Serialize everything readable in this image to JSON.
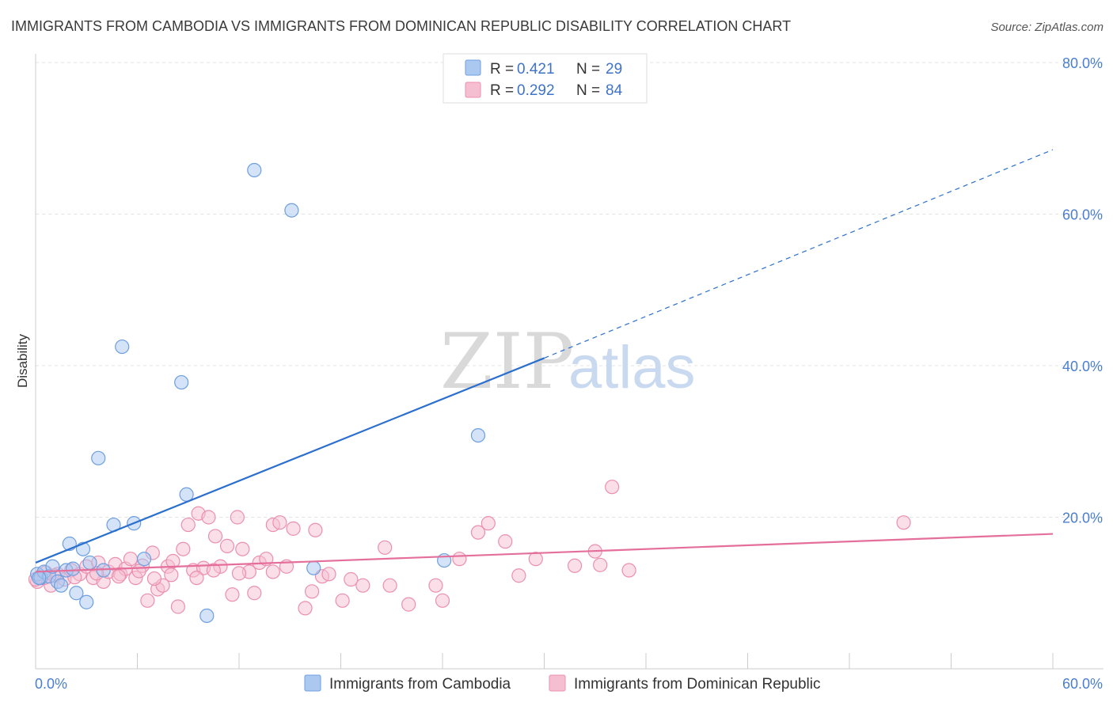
{
  "title": "IMMIGRANTS FROM CAMBODIA VS IMMIGRANTS FROM DOMINICAN REPUBLIC DISABILITY CORRELATION CHART",
  "source": "Source: ZipAtlas.com",
  "watermark": {
    "zip": "ZIP",
    "atlas": "atlas"
  },
  "colors": {
    "blue_fill": "#aac8f0",
    "blue_stroke": "#6d9fe0",
    "blue_line": "#2b6fce",
    "pink_fill": "#f6bfd1",
    "pink_stroke": "#ec8fae",
    "pink_line": "#e46f9b",
    "tick_text": "#4a7fd0",
    "grid": "#e3e3e3"
  },
  "legend": {
    "rows": [
      {
        "r_label": "R =",
        "r_value": "0.421",
        "n_label": "N =",
        "n_value": "29",
        "series": "blue"
      },
      {
        "r_label": "R =",
        "r_value": "0.292",
        "n_label": "N =",
        "n_value": "84",
        "series": "pink"
      }
    ]
  },
  "chart_data": {
    "type": "scatter",
    "title": "IMMIGRANTS FROM CAMBODIA VS IMMIGRANTS FROM DOMINICAN REPUBLIC DISABILITY CORRELATION CHART",
    "xlabel": "",
    "ylabel": "Disability",
    "xlim": [
      0,
      60
    ],
    "ylim": [
      0,
      80
    ],
    "x_tick_labels": [
      "0.0%",
      "60.0%"
    ],
    "y_tick_labels": [
      "20.0%",
      "40.0%",
      "60.0%",
      "80.0%"
    ],
    "y_ticks": [
      20,
      40,
      60,
      80
    ],
    "grid": true,
    "legend_position": "top-center",
    "series": [
      {
        "name": "Immigrants from Cambodia",
        "color": "blue",
        "points": [
          [
            0.1,
            12.5
          ],
          [
            0.3,
            12.0
          ],
          [
            0.5,
            12.8
          ],
          [
            0.8,
            12.2
          ],
          [
            1.0,
            13.5
          ],
          [
            1.3,
            11.5
          ],
          [
            1.5,
            11.0
          ],
          [
            1.8,
            13.0
          ],
          [
            2.0,
            16.5
          ],
          [
            2.2,
            13.2
          ],
          [
            2.4,
            10.0
          ],
          [
            2.8,
            15.8
          ],
          [
            3.0,
            8.8
          ],
          [
            3.2,
            14.0
          ],
          [
            3.7,
            27.8
          ],
          [
            4.0,
            13.0
          ],
          [
            4.6,
            19.0
          ],
          [
            5.1,
            42.5
          ],
          [
            5.8,
            19.2
          ],
          [
            6.4,
            14.5
          ],
          [
            8.6,
            37.8
          ],
          [
            8.9,
            23.0
          ],
          [
            10.1,
            7.0
          ],
          [
            12.9,
            65.8
          ],
          [
            15.1,
            60.5
          ],
          [
            16.4,
            13.3
          ],
          [
            24.1,
            14.3
          ],
          [
            26.1,
            30.8
          ],
          [
            0.2,
            12.0
          ]
        ],
        "trend": {
          "x_start": 0,
          "y_start": 14.0,
          "x_solid_end": 30,
          "y_solid_end": 41.0,
          "x_end": 60,
          "y_end": 68.5
        }
      },
      {
        "name": "Immigrants from Dominican Republic",
        "color": "pink",
        "points": [
          [
            0.1,
            11.5
          ],
          [
            0.3,
            12.2
          ],
          [
            0.6,
            12.7
          ],
          [
            0.9,
            11.0
          ],
          [
            1.3,
            12.5
          ],
          [
            1.7,
            11.8
          ],
          [
            2.1,
            13.0
          ],
          [
            2.6,
            12.5
          ],
          [
            3.0,
            13.5
          ],
          [
            3.4,
            12.0
          ],
          [
            3.7,
            14.0
          ],
          [
            4.0,
            11.5
          ],
          [
            4.3,
            12.8
          ],
          [
            4.7,
            13.8
          ],
          [
            5.0,
            12.5
          ],
          [
            5.3,
            13.2
          ],
          [
            5.6,
            14.5
          ],
          [
            5.9,
            12.0
          ],
          [
            6.3,
            13.6
          ],
          [
            6.6,
            9.0
          ],
          [
            6.9,
            15.3
          ],
          [
            7.2,
            10.5
          ],
          [
            7.5,
            11.0
          ],
          [
            7.8,
            13.5
          ],
          [
            8.1,
            14.2
          ],
          [
            8.4,
            8.2
          ],
          [
            8.7,
            15.8
          ],
          [
            9.0,
            19.0
          ],
          [
            9.3,
            13.0
          ],
          [
            9.6,
            20.5
          ],
          [
            9.9,
            13.3
          ],
          [
            10.2,
            20.0
          ],
          [
            10.6,
            17.5
          ],
          [
            10.9,
            13.5
          ],
          [
            11.3,
            16.2
          ],
          [
            11.6,
            9.8
          ],
          [
            11.9,
            20.0
          ],
          [
            12.2,
            15.8
          ],
          [
            12.6,
            12.8
          ],
          [
            12.9,
            10.0
          ],
          [
            13.2,
            14.0
          ],
          [
            13.6,
            14.5
          ],
          [
            14.0,
            19.0
          ],
          [
            14.4,
            19.3
          ],
          [
            14.8,
            13.5
          ],
          [
            15.2,
            18.5
          ],
          [
            15.9,
            8.0
          ],
          [
            16.3,
            10.2
          ],
          [
            16.5,
            18.3
          ],
          [
            16.9,
            12.2
          ],
          [
            17.3,
            12.5
          ],
          [
            18.1,
            9.0
          ],
          [
            18.6,
            11.8
          ],
          [
            19.3,
            11.0
          ],
          [
            20.6,
            16.0
          ],
          [
            20.9,
            11.0
          ],
          [
            22.0,
            8.5
          ],
          [
            23.6,
            11.0
          ],
          [
            24.0,
            9.0
          ],
          [
            25.0,
            14.5
          ],
          [
            26.1,
            18.0
          ],
          [
            26.7,
            19.2
          ],
          [
            27.7,
            16.8
          ],
          [
            28.5,
            12.3
          ],
          [
            29.5,
            14.5
          ],
          [
            31.8,
            13.6
          ],
          [
            33.0,
            15.5
          ],
          [
            33.3,
            13.7
          ],
          [
            34.0,
            24.0
          ],
          [
            35.0,
            13.0
          ],
          [
            51.2,
            19.3
          ],
          [
            0.5,
            12.0
          ],
          [
            1.1,
            12.3
          ],
          [
            2.3,
            12.1
          ],
          [
            3.6,
            12.6
          ],
          [
            4.9,
            12.2
          ],
          [
            6.1,
            12.9
          ],
          [
            7.0,
            11.9
          ],
          [
            8.0,
            12.4
          ],
          [
            9.5,
            12.0
          ],
          [
            10.5,
            13.0
          ],
          [
            12.0,
            12.6
          ],
          [
            14.0,
            12.8
          ],
          [
            0.0,
            11.8
          ]
        ],
        "trend": {
          "x_start": 0,
          "y_start": 12.8,
          "x_end": 60,
          "y_end": 17.8
        }
      }
    ]
  },
  "bottom_legend": [
    {
      "label": "Immigrants from Cambodia",
      "series": "blue"
    },
    {
      "label": "Immigrants from Dominican Republic",
      "series": "pink"
    }
  ]
}
